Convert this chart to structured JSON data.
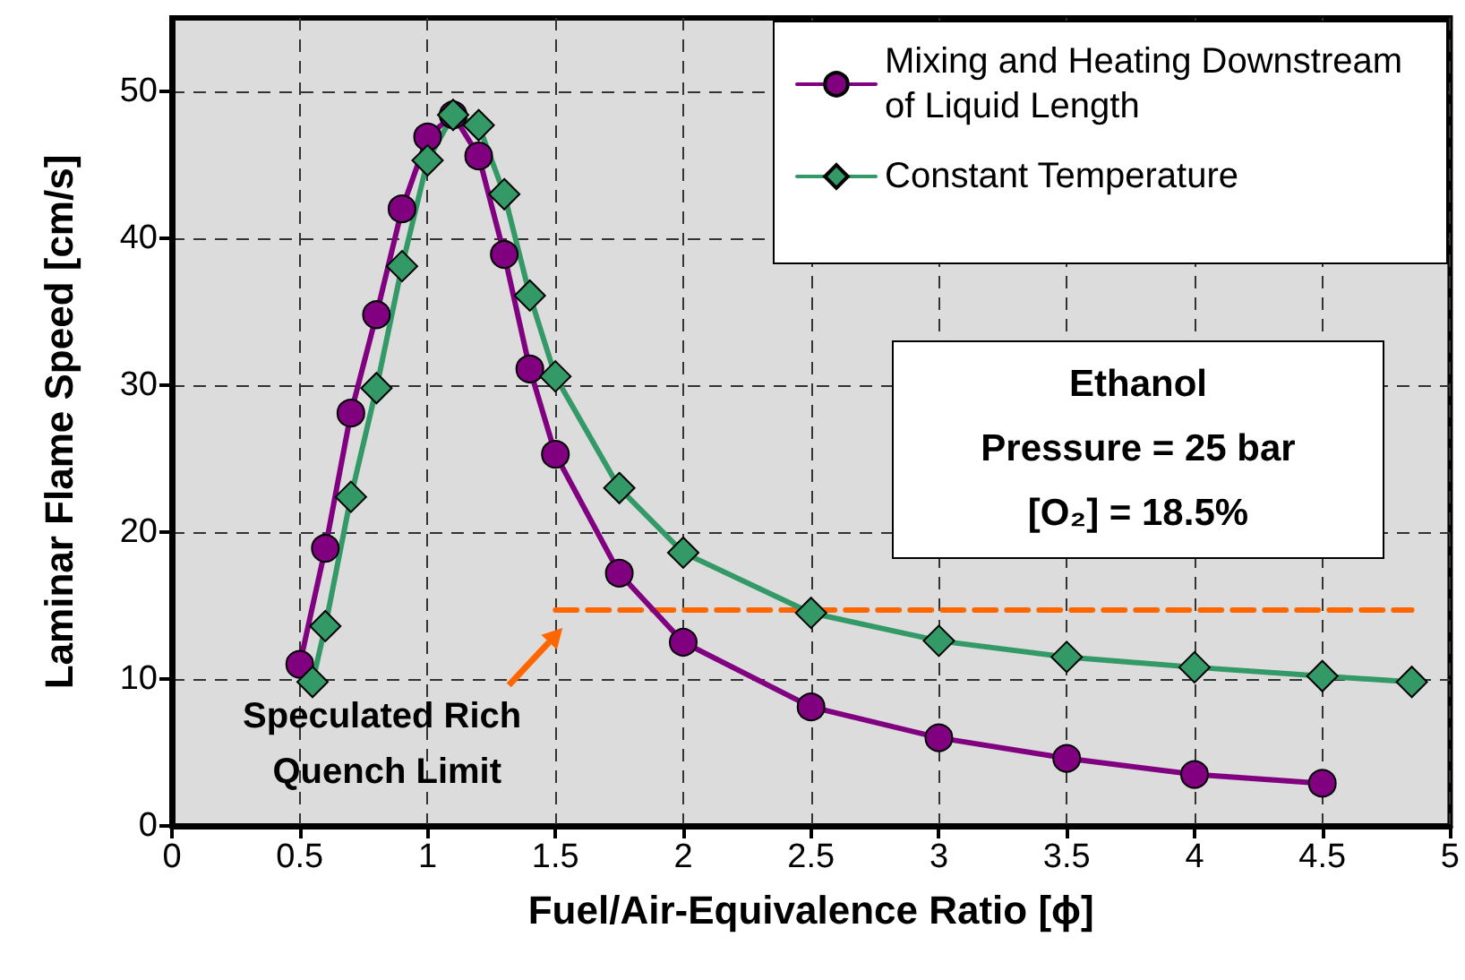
{
  "chart_data": {
    "type": "line",
    "xlabel": "Fuel/Air-Equivalence Ratio [ϕ]",
    "ylabel": "Laminar Flame Speed [cm/s]",
    "xlim": [
      0,
      5
    ],
    "xticks": [
      0,
      0.5,
      1,
      1.5,
      2,
      2.5,
      3,
      3.5,
      4,
      4.5,
      5
    ],
    "ylim": [
      0,
      55
    ],
    "yticks": [
      0,
      10,
      20,
      30,
      40,
      50
    ],
    "grid": true,
    "legend": "top right",
    "series": [
      {
        "name": "Mixing and Heating Downstream of Liquid Length",
        "color": "#800080",
        "marker": "circle",
        "line_style": "solid",
        "x": [
          0.5,
          0.6,
          0.7,
          0.8,
          0.9,
          1.0,
          1.1,
          1.2,
          1.3,
          1.4,
          1.5,
          1.75,
          2.0,
          2.5,
          3.0,
          3.5,
          4.0,
          4.5
        ],
        "values": [
          11.0,
          18.9,
          28.1,
          34.8,
          42.0,
          46.9,
          48.4,
          45.6,
          38.9,
          31.1,
          25.3,
          17.2,
          12.5,
          8.1,
          6.0,
          4.6,
          3.5,
          2.9
        ]
      },
      {
        "name": "Constant Temperature",
        "color": "#339966",
        "marker": "diamond",
        "line_style": "solid",
        "x": [
          0.55,
          0.6,
          0.7,
          0.8,
          0.9,
          1.0,
          1.1,
          1.2,
          1.3,
          1.4,
          1.5,
          1.75,
          2.0,
          2.5,
          3.0,
          3.5,
          4.0,
          4.5,
          4.85
        ],
        "values": [
          9.8,
          13.6,
          22.4,
          29.8,
          38.1,
          45.3,
          48.4,
          47.7,
          43.0,
          36.1,
          30.6,
          23.0,
          18.6,
          14.5,
          12.6,
          11.5,
          10.8,
          10.2,
          9.8
        ]
      },
      {
        "color": "#ff6600",
        "marker": "none",
        "line_style": "dashed",
        "x": [
          1.5,
          4.85
        ],
        "values": [
          14.7,
          14.7
        ]
      }
    ],
    "annotations": [
      "Ethanol",
      "Pressure = 25 bar",
      "[O₂] = 18.5%",
      {
        "text": "Speculated Rich Quench Limit",
        "x": 1.5,
        "y": 14.7
      }
    ]
  }
}
